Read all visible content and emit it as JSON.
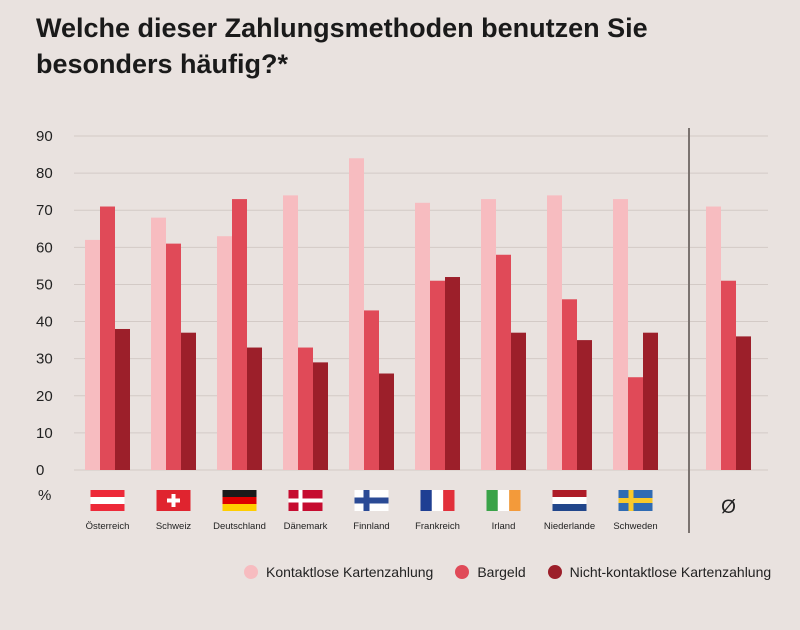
{
  "chart_data": {
    "type": "bar",
    "title": "Welche dieser Zahlungsmethoden benutzen Sie besonders häufig?*",
    "ylabel": "%",
    "ylim": [
      0,
      90
    ],
    "yticks": [
      0,
      10,
      20,
      30,
      40,
      50,
      60,
      70,
      80,
      90
    ],
    "categories": [
      "Österreich",
      "Schweiz",
      "Deutschland",
      "Dänemark",
      "Finnland",
      "Frankreich",
      "Irland",
      "Niederlande",
      "Schweden"
    ],
    "average_label": "Ø",
    "series": [
      {
        "name": "Kontaktlose Kartenzahlung",
        "color": "#f7bcc0",
        "values": [
          62,
          68,
          63,
          74,
          84,
          72,
          73,
          74,
          73
        ],
        "average": 71
      },
      {
        "name": "Bargeld",
        "color": "#e04a58",
        "values": [
          71,
          61,
          73,
          33,
          43,
          51,
          58,
          46,
          25
        ],
        "average": 51
      },
      {
        "name": "Nicht-kontaktlose Kartenzahlung",
        "color": "#9c1f2a",
        "values": [
          38,
          37,
          33,
          29,
          26,
          52,
          37,
          35,
          37
        ],
        "average": 36
      }
    ],
    "flags": [
      "austria-flag",
      "switzerland-flag",
      "germany-flag",
      "denmark-flag",
      "finland-flag",
      "france-flag",
      "ireland-flag",
      "netherlands-flag",
      "sweden-flag"
    ],
    "grid": true,
    "legend_position": "bottom-right"
  }
}
